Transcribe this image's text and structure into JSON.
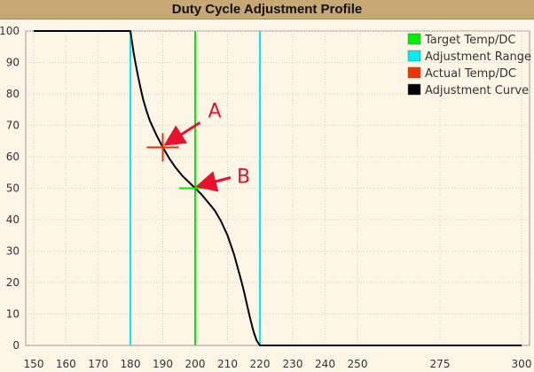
{
  "chart_data": {
    "type": "line",
    "title": "Duty Cycle Adjustment Profile",
    "xlim": [
      150,
      300
    ],
    "ylim": [
      0,
      100
    ],
    "x_ticks": [
      150,
      160,
      170,
      180,
      190,
      200,
      210,
      220,
      230,
      240,
      250,
      275,
      300
    ],
    "y_ticks": [
      0,
      10,
      20,
      30,
      40,
      50,
      60,
      70,
      80,
      90,
      100
    ],
    "grid": true,
    "legend_position": "top-right",
    "series": [
      {
        "name": "Adjustment Curve",
        "color": "#000000",
        "x": [
          150,
          180,
          181,
          182,
          183,
          184,
          185,
          186,
          188,
          190,
          192,
          194,
          196,
          198,
          200,
          202,
          204,
          206,
          208,
          210,
          212,
          214,
          215,
          216,
          217,
          218,
          219,
          220,
          300
        ],
        "y": [
          100,
          100,
          93,
          87.5,
          82.5,
          78,
          74.5,
          71.5,
          67,
          63,
          59.5,
          56.5,
          54,
          52,
          50,
          48,
          45.5,
          43,
          39.5,
          35,
          29,
          21.5,
          17.5,
          13,
          8.5,
          4.5,
          1.5,
          0,
          0
        ]
      },
      {
        "name": "Target Temp/DC",
        "color": "#00ee00",
        "vline_x": 200,
        "point": [
          200,
          50
        ]
      },
      {
        "name": "Adjustment Range",
        "color": "#00eeee",
        "vlines_x": [
          180,
          220
        ]
      },
      {
        "name": "Actual Temp/DC",
        "color": "#ee3300",
        "point": [
          190,
          63
        ]
      }
    ],
    "annotations": [
      {
        "label": "A",
        "target": [
          190,
          63
        ],
        "color": "#e8102a"
      },
      {
        "label": "B",
        "target": [
          200,
          50
        ],
        "color": "#e8102a"
      }
    ]
  }
}
